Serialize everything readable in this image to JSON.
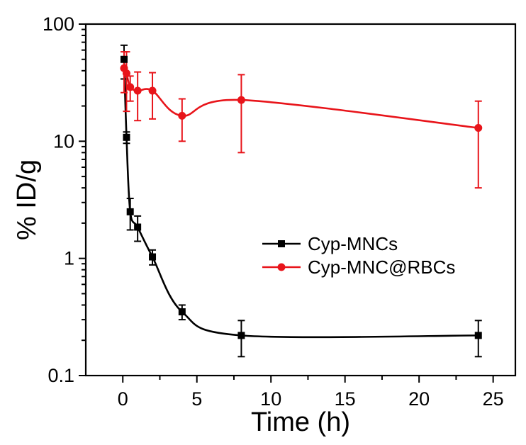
{
  "chart_data": {
    "type": "scatter",
    "title": "",
    "xlabel": "Time (h)",
    "ylabel": "% ID/g",
    "xlim": [
      -2.5,
      26.5
    ],
    "ylim": [
      0.1,
      100
    ],
    "y_scale": "log",
    "x_ticks": [
      0,
      5,
      10,
      15,
      20,
      25
    ],
    "x_tick_labels": [
      "0",
      "5",
      "10",
      "15",
      "20",
      "25"
    ],
    "y_ticks": [
      0.1,
      1,
      10,
      100
    ],
    "y_tick_labels": [
      "0.1",
      "1",
      "10",
      "100"
    ],
    "grid": false,
    "legend_position": "center-right",
    "series": [
      {
        "name": "Cyp-MNCs",
        "color": "#000000",
        "marker": "square",
        "x": [
          0.083,
          0.25,
          0.5,
          1,
          2,
          4,
          8,
          24
        ],
        "y": [
          50,
          10.8,
          2.5,
          1.85,
          1.03,
          0.35,
          0.22,
          0.22
        ],
        "y_err": [
          16,
          1.2,
          0.75,
          0.45,
          0.15,
          0.05,
          0.075,
          0.075
        ],
        "fit_curve": true
      },
      {
        "name": "Cyp-MNC@RBCs",
        "color": "#e8141a",
        "marker": "circle",
        "x": [
          0.083,
          0.25,
          0.5,
          1,
          2,
          4,
          8,
          24
        ],
        "y": [
          42,
          38,
          29,
          27,
          27,
          16.5,
          22.5,
          13
        ],
        "y_err": [
          16,
          20,
          7,
          12,
          11.5,
          6.5,
          14.5,
          9
        ],
        "fit_curve": true
      }
    ]
  }
}
